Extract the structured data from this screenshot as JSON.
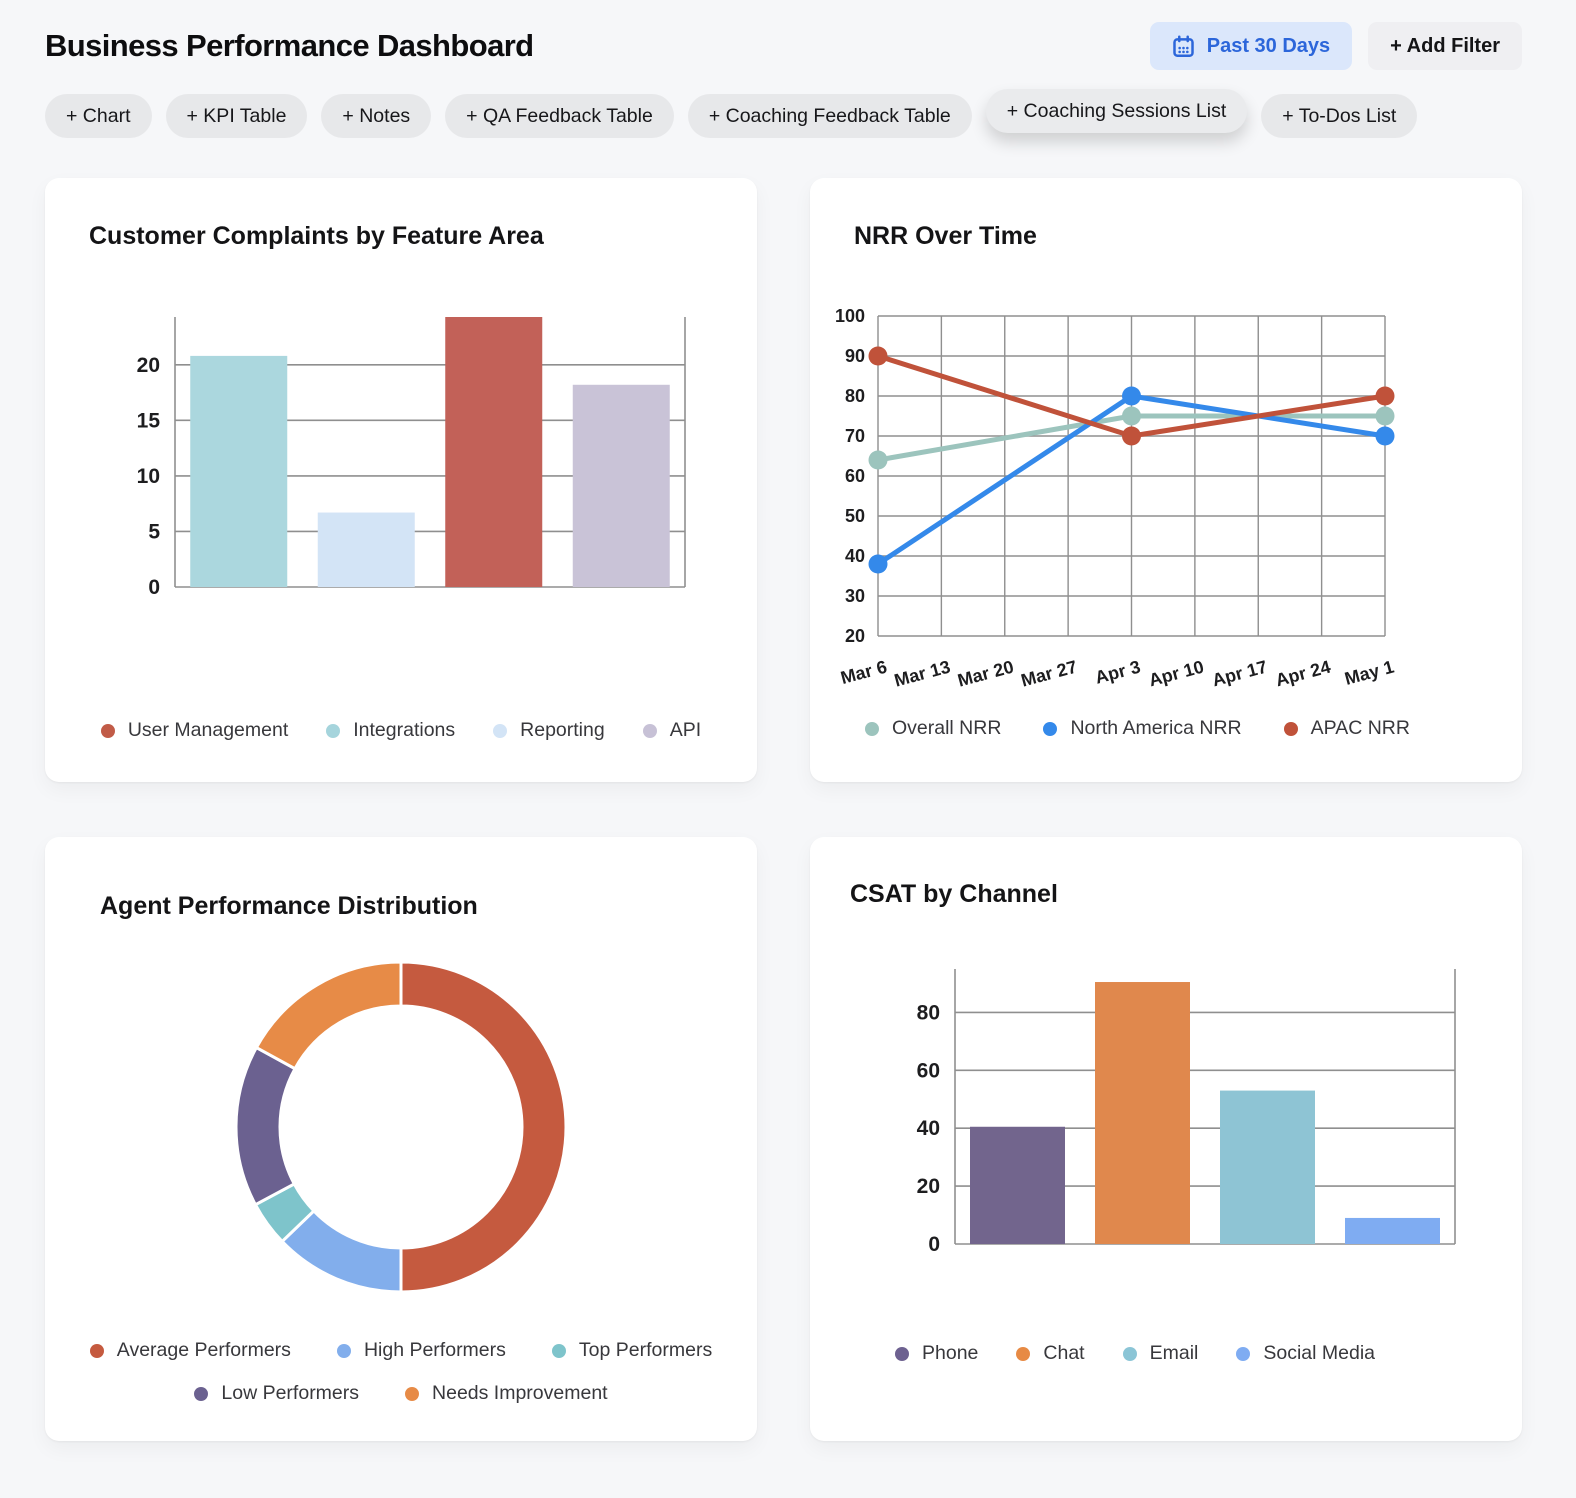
{
  "page": {
    "title": "Business Performance Dashboard",
    "background": "#f6f7f9"
  },
  "header": {
    "date_filter": {
      "label": "Past 30 Days",
      "icon": "calendar-icon",
      "bg": "#dbe7fb",
      "color": "#2c66da"
    },
    "add_filter": {
      "label": "+ Add Filter",
      "bg": "#efeff2"
    }
  },
  "toolbar_chips": [
    {
      "label": "+ Chart",
      "raised": false
    },
    {
      "label": "+ KPI Table",
      "raised": false
    },
    {
      "label": "+ Notes",
      "raised": false
    },
    {
      "label": "+ QA Feedback Table",
      "raised": false
    },
    {
      "label": "+ Coaching Feedback Table",
      "raised": false
    },
    {
      "label": "+ Coaching Sessions List",
      "raised": true
    },
    {
      "label": "+ To-Dos List",
      "raised": false
    }
  ],
  "chart_data": [
    {
      "id": "complaints",
      "type": "bar",
      "title": "Customer Complaints by Feature Area",
      "bars": [
        {
          "label": "Integrations",
          "value": 20.8,
          "color": "#abd7de"
        },
        {
          "label": "Reporting",
          "value": 6.7,
          "color": "#d3e4f6"
        },
        {
          "label": "User Management",
          "value": 24.3,
          "color": "#c26158"
        },
        {
          "label": "API",
          "value": 18.2,
          "color": "#c9c3d7"
        }
      ],
      "legend": [
        {
          "label": "User Management",
          "color": "#c15b47"
        },
        {
          "label": "Integrations",
          "color": "#a5d4dc"
        },
        {
          "label": "Reporting",
          "color": "#d3e4f6"
        },
        {
          "label": "API",
          "color": "#c7c1d6"
        }
      ],
      "yticks": [
        0,
        5,
        10,
        15,
        20
      ],
      "ylim": [
        0,
        24.3
      ],
      "grid": "horizontal",
      "legend_position": "bottom-center"
    },
    {
      "id": "nrr",
      "type": "line",
      "title": "NRR Over Time",
      "x": [
        "Mar 6",
        "Mar 13",
        "Mar 20",
        "Mar 27",
        "Apr 3",
        "Apr 10",
        "Apr 17",
        "Apr 24",
        "May 1"
      ],
      "point_dates": [
        "Mar 6",
        "Apr 3",
        "May 1"
      ],
      "series": [
        {
          "name": "Overall NRR",
          "color": "#9cc4bd",
          "values": [
            64,
            75,
            75
          ]
        },
        {
          "name": "North America NRR",
          "color": "#3489ea",
          "values": [
            38,
            80,
            70
          ]
        },
        {
          "name": "APAC NRR",
          "color": "#c0523a",
          "values": [
            90,
            70,
            80
          ]
        }
      ],
      "yticks": [
        20,
        30,
        40,
        50,
        60,
        70,
        80,
        90,
        100
      ],
      "ylim": [
        20,
        100
      ],
      "grid": "both",
      "legend_position": "bottom-left"
    },
    {
      "id": "agent-performance",
      "type": "pie",
      "title": "Agent Performance Distribution",
      "donut": true,
      "slices": [
        {
          "label": "Average Performers",
          "pct": 50,
          "color": "#c55a3f"
        },
        {
          "label": "High Performers",
          "pct": 12.8,
          "color": "#82aeec"
        },
        {
          "label": "Top Performers",
          "pct": 4.4,
          "color": "#7ec4cb"
        },
        {
          "label": "Low Performers",
          "pct": 15.8,
          "color": "#6b6190"
        },
        {
          "label": "Needs Improvement",
          "pct": 17,
          "color": "#e78b47"
        }
      ],
      "legend_rows": [
        [
          "Average Performers",
          "High Performers",
          "Top Performers"
        ],
        [
          "Low Performers",
          "Needs Improvement"
        ]
      ],
      "legend_position": "bottom-center"
    },
    {
      "id": "csat",
      "type": "bar",
      "title": "CSAT by Channel",
      "bars": [
        {
          "label": "Phone",
          "value": 40.5,
          "color": "#72658d"
        },
        {
          "label": "Chat",
          "value": 90.5,
          "color": "#e0884d"
        },
        {
          "label": "Email",
          "value": 53,
          "color": "#8ec4d4"
        },
        {
          "label": "Social Media",
          "value": 9,
          "color": "#7facf2"
        }
      ],
      "legend": [
        {
          "label": "Phone",
          "color": "#6d6190"
        },
        {
          "label": "Chat",
          "color": "#e78a44"
        },
        {
          "label": "Email",
          "color": "#8bc5d6"
        },
        {
          "label": "Social Media",
          "color": "#7facf2"
        }
      ],
      "yticks": [
        0,
        20,
        40,
        60,
        80
      ],
      "ylim": [
        0,
        95
      ],
      "grid": "horizontal",
      "legend_position": "bottom-left"
    }
  ]
}
